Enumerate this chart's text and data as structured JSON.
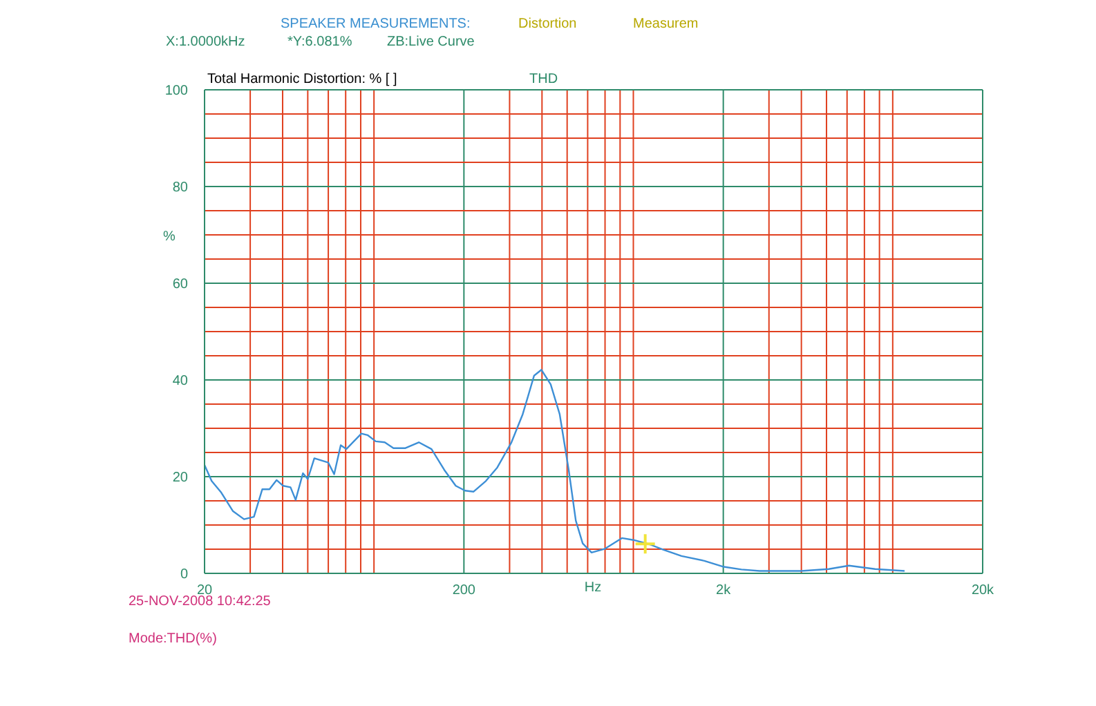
{
  "chart_data": {
    "type": "line",
    "title": "SPEAKER MEASUREMENTS:",
    "xlabel": "Hz",
    "ylabel": "%",
    "annotations": [
      "Distortion",
      "Measurem",
      "X:1.0000kHz",
      "*Y:6.081%",
      "ZB:Live Curve",
      "Total Harmonic Distortion: % [ ]",
      "THD",
      "25-NOV-2008 10:42:25",
      "Mode:THD(%)"
    ],
    "log": "x",
    "grid": true,
    "xlim": [
      20,
      20000
    ],
    "ylim": [
      0,
      100
    ],
    "xticks": [
      20,
      {
        "value": 30,
        "label": null
      },
      {
        "value": 40,
        "label": null
      },
      {
        "value": 50,
        "label": null
      },
      {
        "value": 60,
        "label": null
      },
      {
        "value": 70,
        "label": null
      },
      {
        "value": 80,
        "label": null
      },
      {
        "value": 90,
        "label": null
      },
      200,
      {
        "value": 300,
        "label": null
      },
      {
        "value": 400,
        "label": null
      },
      {
        "value": 500,
        "label": null
      },
      {
        "value": 600,
        "label": null
      },
      {
        "value": 700,
        "label": null
      },
      {
        "value": 800,
        "label": null
      },
      {
        "value": 900,
        "label": null
      },
      {
        "value": 2000,
        "label": "2k"
      },
      {
        "value": 3000,
        "label": null
      },
      {
        "value": 4000,
        "label": null
      },
      {
        "value": 5000,
        "label": null
      },
      {
        "value": 6000,
        "label": null
      },
      {
        "value": 7000,
        "label": null
      },
      {
        "value": 8000,
        "label": null
      },
      {
        "value": 9000,
        "label": null
      },
      {
        "value": 20000,
        "label": "20k"
      }
    ],
    "yticks": [
      0,
      {
        "value": 5,
        "label": null
      },
      {
        "value": 10,
        "label": null
      },
      {
        "value": 15,
        "label": null
      },
      20,
      {
        "value": 25,
        "label": null
      },
      {
        "value": 30,
        "label": null
      },
      {
        "value": 35,
        "label": null
      },
      40,
      {
        "value": 45,
        "label": null
      },
      {
        "value": 50,
        "label": null
      },
      {
        "value": 55,
        "label": null
      },
      60,
      {
        "value": 65,
        "label": null
      },
      {
        "value": 70,
        "label": null
      },
      {
        "value": 75,
        "label": null
      },
      80,
      {
        "value": 85,
        "label": null
      },
      {
        "value": 90,
        "label": null
      },
      {
        "value": 95,
        "label": null
      },
      100
    ],
    "series": [
      {
        "color": "#3d8fd6",
        "x": [
          20,
          21.3,
          23.2,
          25.7,
          28.4,
          31,
          33.4,
          35.6,
          37.9,
          40.2,
          42.9,
          44.9,
          47.9,
          50,
          53,
          60,
          63.2,
          67,
          70.4,
          80.5,
          85,
          91.4,
          99,
          107,
          119,
          134,
          150,
          168,
          186,
          202,
          218,
          243,
          269,
          305,
          337,
          373,
          398,
          432,
          468,
          507,
          540,
          574,
          621,
          700,
          813,
          901,
          1040,
          1172,
          1380,
          1690,
          1990,
          2350,
          2760,
          4000,
          5100,
          6100,
          7700,
          10000
        ],
        "values": [
          22.4,
          19.1,
          16.7,
          12.9,
          11.2,
          11.7,
          17.4,
          17.4,
          19.3,
          18.1,
          17.8,
          15.2,
          20.7,
          19.5,
          23.8,
          22.9,
          20.5,
          26.5,
          25.7,
          28.9,
          28.6,
          27.3,
          27.1,
          25.9,
          25.9,
          27.1,
          25.7,
          21.4,
          18.1,
          17.1,
          16.9,
          19.1,
          21.9,
          27.1,
          32.9,
          40.9,
          42.1,
          39.1,
          32.9,
          21.4,
          10.9,
          6.2,
          4.3,
          5.1,
          7.3,
          6.9,
          6,
          4.9,
          3.6,
          2.6,
          1.4,
          0.8,
          0.5,
          0.5,
          0.9,
          1.6,
          0.9,
          0.5
        ]
      },
      {
        "type": "scatter",
        "color": "#f0e43a",
        "marker": "cross",
        "x": [
          1000
        ],
        "values": [
          6.1
        ]
      }
    ]
  }
}
